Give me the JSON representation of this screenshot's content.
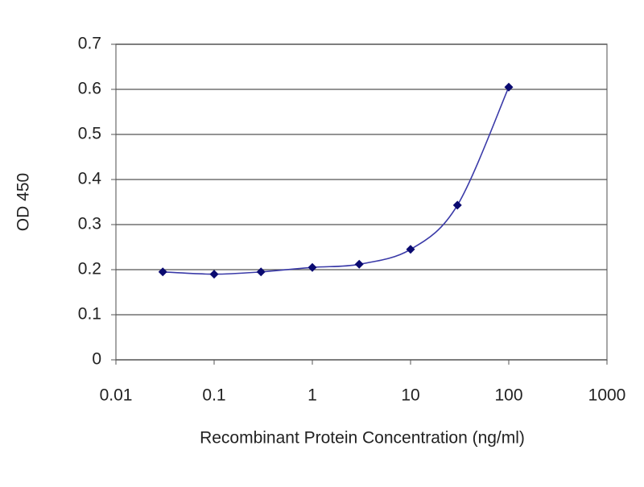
{
  "chart_data": {
    "type": "line",
    "x_label": "Recombinant Protein Concentration (ng/ml)",
    "y_label": "OD 450",
    "xscale": "log",
    "x": [
      0.03,
      0.1,
      0.3,
      1,
      3,
      10,
      30,
      100
    ],
    "series": [
      {
        "name": "OD 450",
        "color": "#3a3aa8",
        "marker_color": "#0a0a70",
        "values": [
          0.195,
          0.19,
          0.195,
          0.205,
          0.212,
          0.245,
          0.343,
          0.605
        ]
      }
    ],
    "xlim": [
      0.01,
      1000
    ],
    "xticks": [
      0.01,
      0.1,
      1,
      10,
      100,
      1000
    ],
    "ylim": [
      0,
      0.7
    ],
    "yticks": [
      0,
      0.1,
      0.2,
      0.3,
      0.4,
      0.5,
      0.6,
      0.7
    ],
    "grid": true
  }
}
